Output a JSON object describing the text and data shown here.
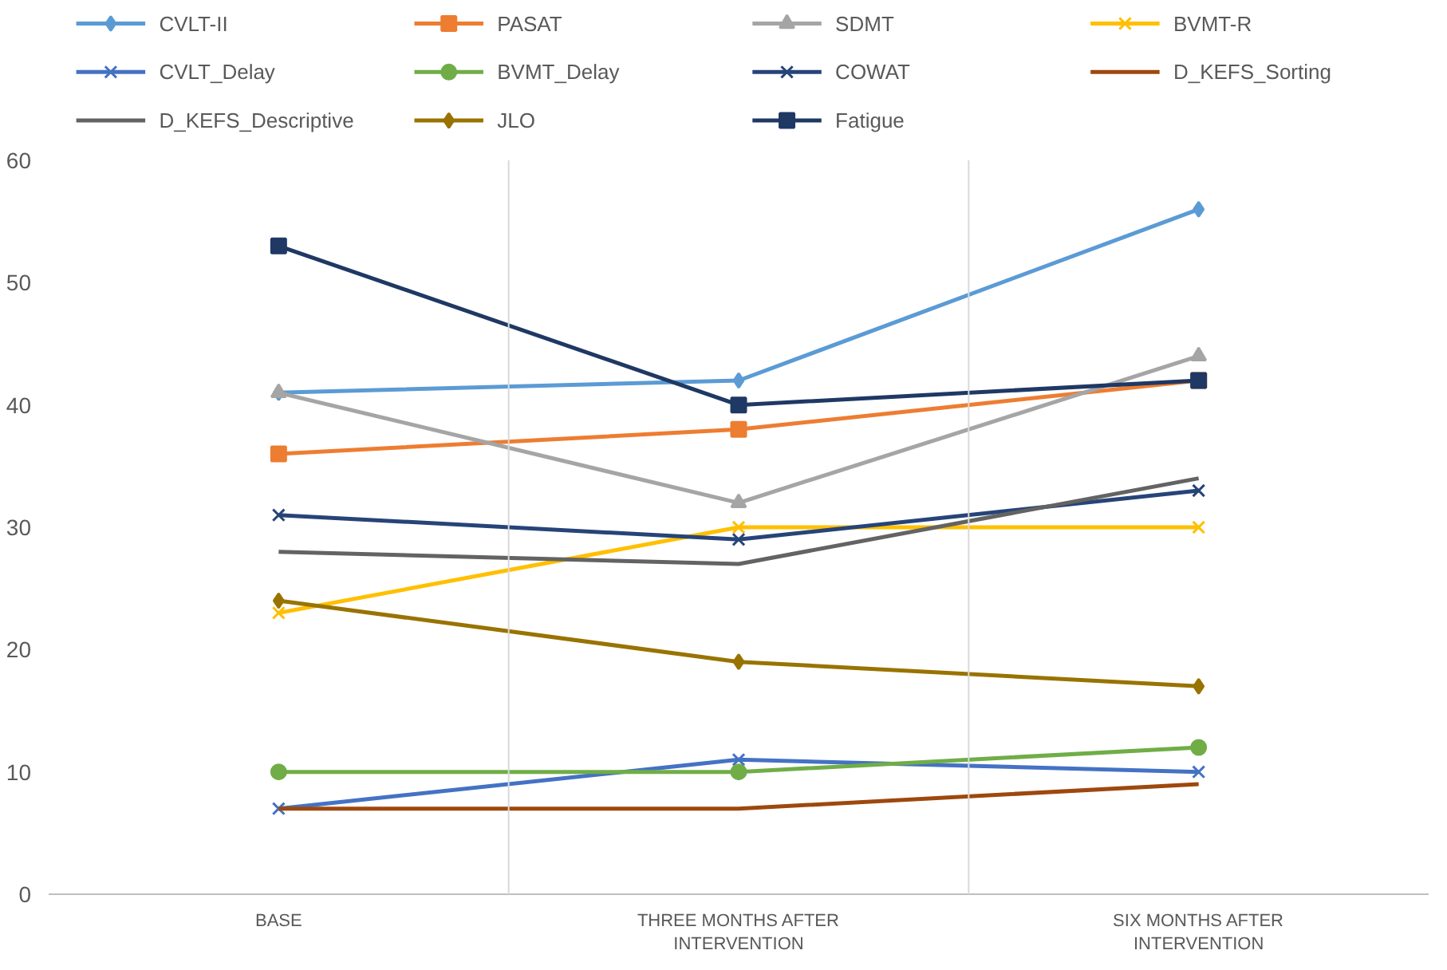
{
  "chart_data": {
    "type": "line",
    "categories": [
      "BASE",
      "THREE MONTHS AFTER INTERVENTION",
      "SIX MONTHS AFTER INTERVENTION"
    ],
    "ylim": [
      0,
      60
    ],
    "yticks": [
      0,
      10,
      20,
      30,
      40,
      50,
      60
    ],
    "grid": "x",
    "legend": "top",
    "line_style": "solid",
    "series": [
      {
        "name": "CVLT-II",
        "color": "#5b9bd5",
        "marker": "diamond",
        "values": [
          41,
          42,
          56
        ]
      },
      {
        "name": "PASAT",
        "color": "#ed7d31",
        "marker": "square",
        "values": [
          36,
          38,
          42
        ]
      },
      {
        "name": "SDMT",
        "color": "#a5a5a5",
        "marker": "triangle",
        "values": [
          41,
          32,
          44
        ]
      },
      {
        "name": "BVMT-R",
        "color": "#ffc000",
        "marker": "cross",
        "values": [
          23,
          30,
          30
        ]
      },
      {
        "name": "CVLT_Delay",
        "color": "#4472c4",
        "marker": "cross",
        "values": [
          7,
          11,
          10
        ]
      },
      {
        "name": "BVMT_Delay",
        "color": "#70ad47",
        "marker": "circle",
        "values": [
          10,
          10,
          12
        ]
      },
      {
        "name": "COWAT",
        "color": "#264478",
        "marker": "cross",
        "values": [
          31,
          29,
          33
        ]
      },
      {
        "name": "D_KEFS_Sorting",
        "color": "#9e480e",
        "marker": "none",
        "values": [
          7,
          7,
          9
        ]
      },
      {
        "name": "D_KEFS_Descriptive",
        "color": "#636363",
        "marker": "none",
        "values": [
          28,
          27,
          34
        ]
      },
      {
        "name": "JLO",
        "color": "#997300",
        "marker": "diamond",
        "values": [
          24,
          19,
          17
        ]
      },
      {
        "name": "Fatigue",
        "color": "#1f3864",
        "marker": "square",
        "values": [
          53,
          40,
          42
        ]
      }
    ]
  }
}
